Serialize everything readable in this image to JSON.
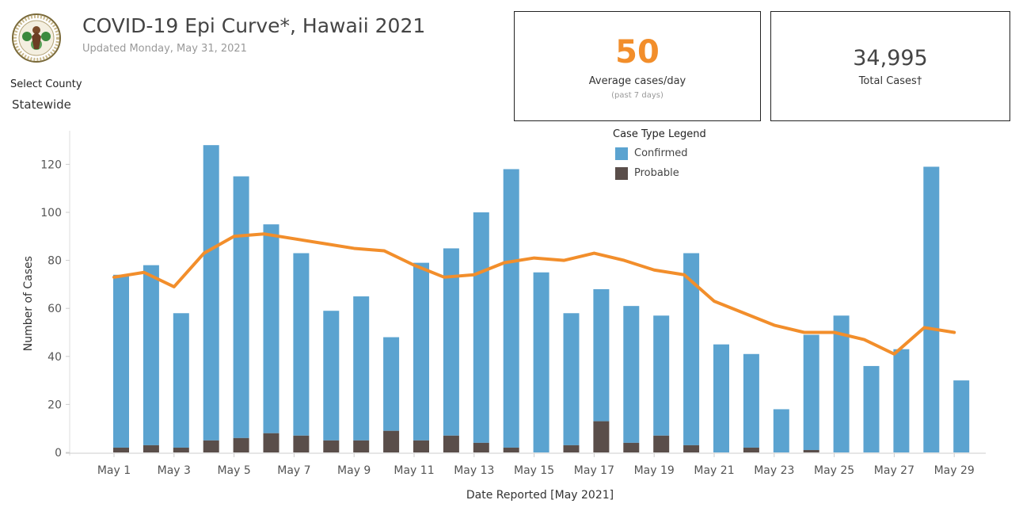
{
  "header": {
    "title": "COVID-19 Epi Curve*, Hawaii 2021",
    "subtitle": "Updated Monday, May 31, 2021"
  },
  "filter": {
    "label": "Select County",
    "value": "Statewide"
  },
  "kpi": {
    "avg_value": "50",
    "avg_label": "Average cases/day",
    "avg_note": "(past 7 days)",
    "total_value": "34,995",
    "total_label": "Total Cases†"
  },
  "legend": {
    "title": "Case Type Legend",
    "items": [
      {
        "label": "Confirmed",
        "color": "#5ba3d0"
      },
      {
        "label": "Probable",
        "color": "#5a4e4a"
      }
    ]
  },
  "colors": {
    "confirmed": "#5ba3d0",
    "probable": "#5a4e4a",
    "average": "#f28e2b"
  },
  "chart_data": {
    "type": "bar",
    "stacked": true,
    "x": [
      "May 1",
      "May 2",
      "May 3",
      "May 4",
      "May 5",
      "May 6",
      "May 7",
      "May 8",
      "May 9",
      "May 10",
      "May 11",
      "May 12",
      "May 13",
      "May 14",
      "May 15",
      "May 16",
      "May 17",
      "May 18",
      "May 19",
      "May 20",
      "May 21",
      "May 22",
      "May 23",
      "May 24",
      "May 25",
      "May 26",
      "May 27",
      "May 28",
      "May 29"
    ],
    "tick_labels": [
      "May 1",
      "May 3",
      "May 5",
      "May 7",
      "May 9",
      "May 11",
      "May 13",
      "May 15",
      "May 17",
      "May 19",
      "May 21",
      "May 23",
      "May 25",
      "May 27",
      "May 29"
    ],
    "series": [
      {
        "name": "Confirmed",
        "values": [
          72,
          75,
          56,
          123,
          109,
          87,
          76,
          54,
          60,
          39,
          74,
          78,
          96,
          116,
          75,
          55,
          55,
          57,
          50,
          80,
          45,
          39,
          18,
          48,
          57,
          36,
          43,
          119,
          30
        ]
      },
      {
        "name": "Probable",
        "values": [
          2,
          3,
          2,
          5,
          6,
          8,
          7,
          5,
          5,
          9,
          5,
          7,
          4,
          2,
          0,
          3,
          13,
          4,
          7,
          3,
          0,
          2,
          0,
          1,
          0,
          0,
          0,
          0,
          0
        ]
      }
    ],
    "line": {
      "values": [
        73,
        75,
        69,
        83,
        90,
        91,
        89,
        87,
        85,
        84,
        78,
        73,
        74,
        79,
        81,
        80,
        83,
        80,
        76,
        74,
        63,
        58,
        53,
        50,
        50,
        47,
        41,
        52,
        50
      ]
    },
    "yticks": [
      0,
      20,
      40,
      60,
      80,
      100,
      120
    ],
    "ylim": [
      0,
      130
    ],
    "xlabel": "Date Reported [May 2021]",
    "ylabel": "Number of Cases"
  }
}
